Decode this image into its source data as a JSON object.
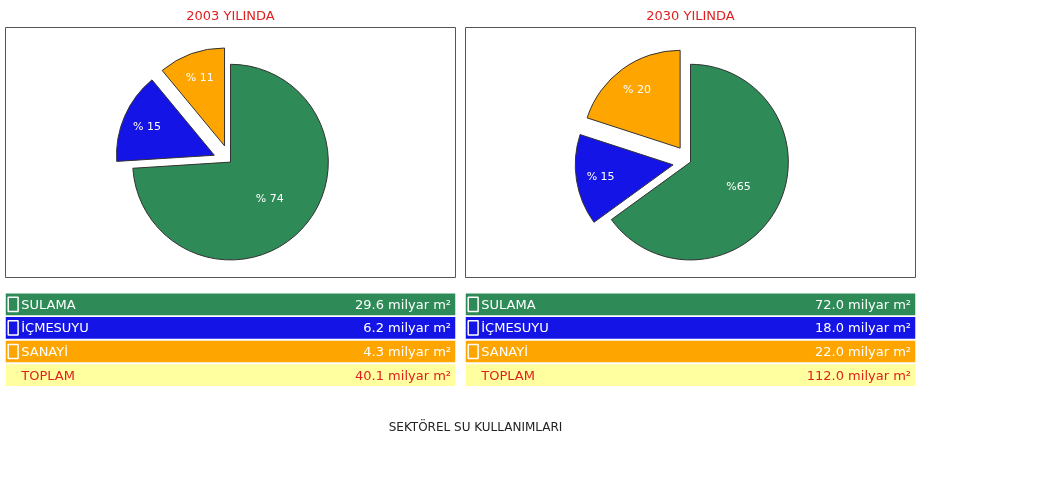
{
  "chart_data": [
    {
      "type": "pie",
      "title": "2003 YILINDA",
      "categories": [
        "SULAMA",
        "İÇMESUYU",
        "SANAYİ"
      ],
      "values": [
        74,
        15,
        11
      ],
      "colors": [
        "#2e8b57",
        "#1414e6",
        "#ffa500"
      ],
      "value_labels": [
        "% 74",
        "% 15",
        "% 11"
      ],
      "legend": "bottom",
      "annotations": [
        "29.6 milyar m²",
        "6.2 milyar m²",
        "4.3 milyar m²",
        "TOPLAM",
        "40.1 milyar m²"
      ]
    },
    {
      "type": "pie",
      "title": "2030 YILINDA",
      "categories": [
        "SULAMA",
        "İÇMESUYU",
        "SANAYİ"
      ],
      "values": [
        65,
        15,
        20
      ],
      "colors": [
        "#2e8b57",
        "#1414e6",
        "#ffa500"
      ],
      "value_labels": [
        "%65",
        "% 15",
        "% 20"
      ],
      "legend": "bottom",
      "annotations": [
        "72.0 milyar m²",
        "18.0 milyar m²",
        "22.0 milyar m²",
        "TOPLAM",
        "112.0 milyar m²",
        "SEKTÖREL SU KULLANIMLARI"
      ]
    }
  ]
}
